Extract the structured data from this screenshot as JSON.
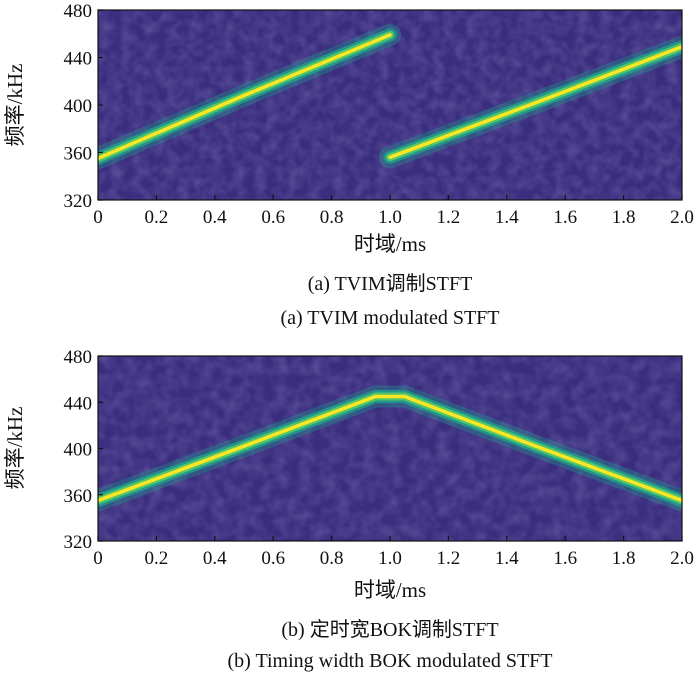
{
  "colors": {
    "background": "#3a2d7e",
    "trace_outer": "#1fa08c",
    "trace_mid": "#52c569",
    "trace_core": "#fde725",
    "axis": "#111111"
  },
  "chart_data": [
    {
      "type": "heatmap",
      "subtype": "spectrogram",
      "xlabel": "时域/ms",
      "ylabel": "频率/kHz",
      "xlim": [
        0,
        2.0
      ],
      "ylim": [
        320,
        480
      ],
      "xticks": [
        "0",
        "0.2",
        "0.4",
        "0.6",
        "0.8",
        "1.0",
        "1.2",
        "1.4",
        "1.6",
        "1.8",
        "2.0"
      ],
      "yticks": [
        "320",
        "360",
        "400",
        "440",
        "480"
      ],
      "caption_cn": "(a) TVIM调制STFT",
      "caption_en": "(a) TVIM modulated STFT",
      "ridges": [
        {
          "x": [
            0.0,
            0.5,
            1.0
          ],
          "y": [
            355,
            408,
            459
          ]
        },
        {
          "x": [
            1.0,
            1.5,
            2.0
          ],
          "y": [
            356,
            402,
            449
          ]
        }
      ]
    },
    {
      "type": "heatmap",
      "subtype": "spectrogram",
      "xlabel": "时域/ms",
      "ylabel": "频率/kHz",
      "xlim": [
        0,
        2.0
      ],
      "ylim": [
        320,
        480
      ],
      "xticks": [
        "0",
        "0.2",
        "0.4",
        "0.6",
        "0.8",
        "1.0",
        "1.2",
        "1.4",
        "1.6",
        "1.8",
        "2.0"
      ],
      "yticks": [
        "320",
        "360",
        "400",
        "440",
        "480"
      ],
      "caption_cn": "(b) 定时宽BOK调制STFT",
      "caption_en": "(b) Timing width BOK modulated STFT",
      "ridges": [
        {
          "x": [
            0.0,
            0.5,
            0.95,
            1.05,
            1.5,
            2.0
          ],
          "y": [
            355,
            402,
            445,
            445,
            402,
            355
          ]
        }
      ]
    }
  ]
}
